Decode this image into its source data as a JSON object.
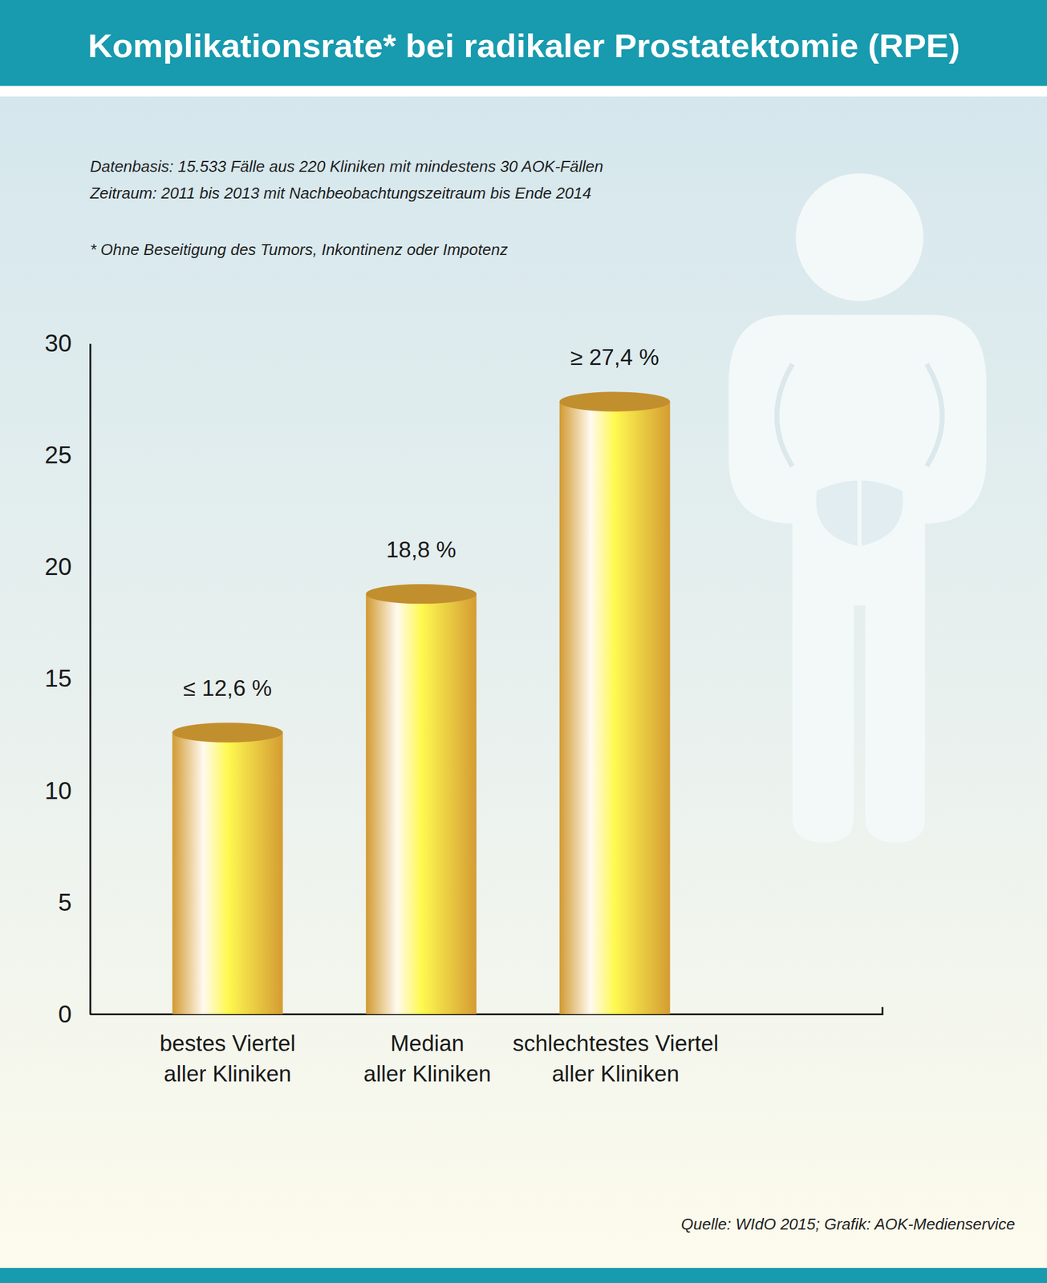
{
  "chart_data": {
    "type": "bar",
    "title": "Komplikationsrate* bei radikaler Prostatektomie (RPE)",
    "annotations": [
      "Datenbasis: 15.533 Fälle aus 220 Kliniken mit mindestens 30 AOK-Fällen",
      "Zeitraum: 2011 bis 2013 mit Nachbeobachtungszeitraum bis Ende 2014",
      "* Ohne Beseitigung des Tumors, Inkontinenz oder Impotenz",
      "Quelle: WIdO 2015; Grafik: AOK-Medienservice"
    ],
    "categories": [
      "bestes Viertel\naller Kliniken",
      "Median\naller Kliniken",
      "schlechtestes Viertel\naller Kliniken"
    ],
    "values": [
      12.6,
      18.8,
      27.4
    ],
    "value_labels": [
      "≤ 12,6 %",
      "18,8 %",
      "≥ 27,4 %"
    ],
    "color": "#dca235",
    "data_labels": true,
    "ylim": [
      0,
      30
    ],
    "yticks": [
      0,
      5,
      10,
      15,
      20,
      25,
      30
    ],
    "grid": false
  }
}
